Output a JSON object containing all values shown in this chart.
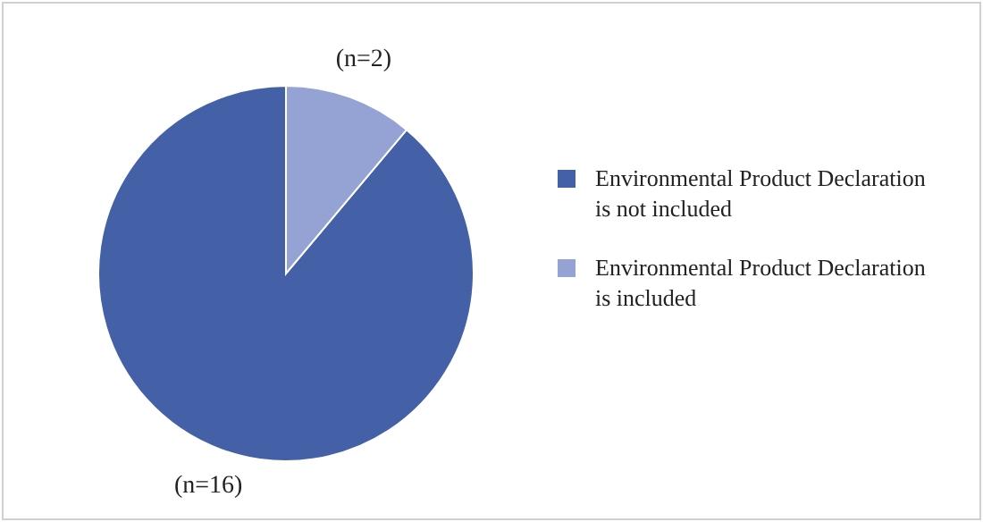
{
  "chart_data": {
    "type": "pie",
    "categories": [
      "Environmental Product Declaration is not included",
      "Environmental Product Declaration is included"
    ],
    "values": [
      16,
      2
    ],
    "colors": [
      "#4461a8",
      "#95a3d4"
    ],
    "value_labels": [
      "(n=16)",
      "(n=2)"
    ],
    "legend": "right"
  }
}
